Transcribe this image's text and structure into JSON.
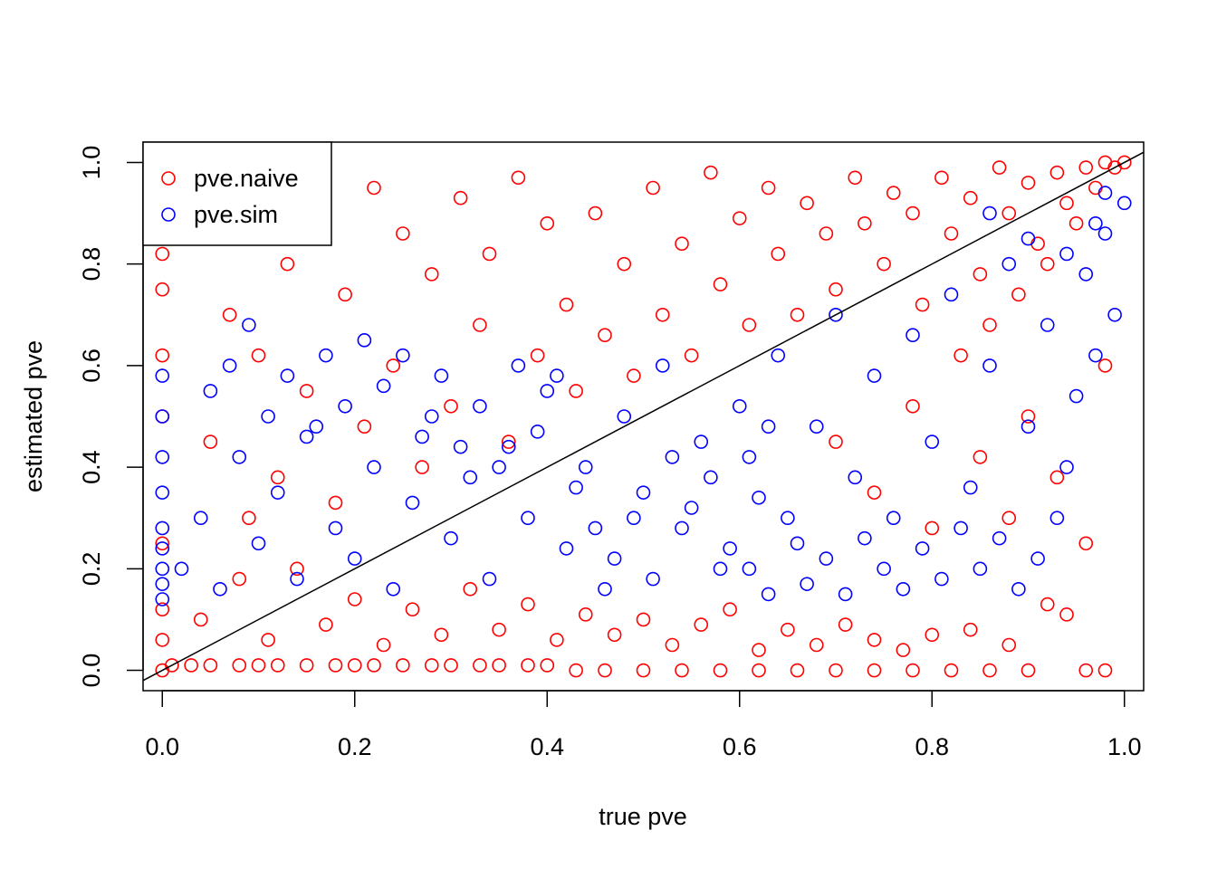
{
  "chart_data": {
    "type": "scatter",
    "title": "",
    "xlabel": "true pve",
    "ylabel": "estimated pve",
    "xlim": [
      -0.02,
      1.02
    ],
    "ylim": [
      -0.04,
      1.04
    ],
    "x_ticks": [
      "0.0",
      "0.2",
      "0.4",
      "0.6",
      "0.8",
      "1.0"
    ],
    "y_ticks": [
      "0.0",
      "0.2",
      "0.4",
      "0.6",
      "0.8",
      "1.0"
    ],
    "grid": false,
    "legend_position": "top-left",
    "reference_line": {
      "from": [
        -0.02,
        -0.02
      ],
      "to": [
        1.02,
        1.02
      ]
    },
    "series": [
      {
        "name": "pve.naive",
        "color": "#ff0000",
        "marker": "open-circle",
        "values": [
          [
            0.0,
            0.0
          ],
          [
            0.0,
            0.25
          ],
          [
            0.0,
            0.5
          ],
          [
            0.0,
            0.62
          ],
          [
            0.0,
            0.75
          ],
          [
            0.0,
            0.82
          ],
          [
            0.0,
            0.88
          ],
          [
            0.0,
            0.12
          ],
          [
            0.0,
            0.06
          ],
          [
            0.01,
            0.01
          ],
          [
            0.03,
            0.01
          ],
          [
            0.05,
            0.01
          ],
          [
            0.08,
            0.01
          ],
          [
            0.1,
            0.01
          ],
          [
            0.12,
            0.01
          ],
          [
            0.15,
            0.01
          ],
          [
            0.18,
            0.01
          ],
          [
            0.2,
            0.01
          ],
          [
            0.22,
            0.01
          ],
          [
            0.25,
            0.01
          ],
          [
            0.28,
            0.01
          ],
          [
            0.3,
            0.01
          ],
          [
            0.33,
            0.01
          ],
          [
            0.35,
            0.01
          ],
          [
            0.38,
            0.01
          ],
          [
            0.4,
            0.01
          ],
          [
            0.43,
            0.0
          ],
          [
            0.46,
            0.0
          ],
          [
            0.5,
            0.0
          ],
          [
            0.54,
            0.0
          ],
          [
            0.58,
            0.0
          ],
          [
            0.62,
            0.0
          ],
          [
            0.66,
            0.0
          ],
          [
            0.7,
            0.0
          ],
          [
            0.74,
            0.0
          ],
          [
            0.78,
            0.0
          ],
          [
            0.82,
            0.0
          ],
          [
            0.86,
            0.0
          ],
          [
            0.9,
            0.0
          ],
          [
            0.96,
            0.0
          ],
          [
            0.98,
            0.0
          ],
          [
            0.05,
            0.45
          ],
          [
            0.07,
            0.7
          ],
          [
            0.09,
            0.3
          ],
          [
            0.1,
            0.62
          ],
          [
            0.12,
            0.38
          ],
          [
            0.13,
            0.8
          ],
          [
            0.15,
            0.55
          ],
          [
            0.16,
            0.9
          ],
          [
            0.18,
            0.33
          ],
          [
            0.19,
            0.74
          ],
          [
            0.21,
            0.48
          ],
          [
            0.22,
            0.95
          ],
          [
            0.24,
            0.6
          ],
          [
            0.25,
            0.86
          ],
          [
            0.27,
            0.4
          ],
          [
            0.28,
            0.78
          ],
          [
            0.3,
            0.52
          ],
          [
            0.31,
            0.93
          ],
          [
            0.33,
            0.68
          ],
          [
            0.34,
            0.82
          ],
          [
            0.36,
            0.45
          ],
          [
            0.37,
            0.97
          ],
          [
            0.39,
            0.62
          ],
          [
            0.4,
            0.88
          ],
          [
            0.42,
            0.72
          ],
          [
            0.43,
            0.55
          ],
          [
            0.45,
            0.9
          ],
          [
            0.46,
            0.66
          ],
          [
            0.48,
            0.8
          ],
          [
            0.49,
            0.58
          ],
          [
            0.51,
            0.95
          ],
          [
            0.52,
            0.7
          ],
          [
            0.54,
            0.84
          ],
          [
            0.55,
            0.62
          ],
          [
            0.57,
            0.98
          ],
          [
            0.58,
            0.76
          ],
          [
            0.6,
            0.89
          ],
          [
            0.61,
            0.68
          ],
          [
            0.63,
            0.95
          ],
          [
            0.64,
            0.82
          ],
          [
            0.66,
            0.7
          ],
          [
            0.67,
            0.92
          ],
          [
            0.69,
            0.86
          ],
          [
            0.7,
            0.75
          ],
          [
            0.72,
            0.97
          ],
          [
            0.73,
            0.88
          ],
          [
            0.75,
            0.8
          ],
          [
            0.76,
            0.94
          ],
          [
            0.78,
            0.9
          ],
          [
            0.79,
            0.72
          ],
          [
            0.81,
            0.97
          ],
          [
            0.82,
            0.86
          ],
          [
            0.84,
            0.93
          ],
          [
            0.85,
            0.78
          ],
          [
            0.87,
            0.99
          ],
          [
            0.88,
            0.9
          ],
          [
            0.9,
            0.96
          ],
          [
            0.91,
            0.84
          ],
          [
            0.93,
            0.98
          ],
          [
            0.94,
            0.92
          ],
          [
            0.96,
            0.99
          ],
          [
            0.97,
            0.95
          ],
          [
            0.98,
            1.0
          ],
          [
            0.99,
            0.99
          ],
          [
            1.0,
            1.0
          ],
          [
            0.95,
            0.88
          ],
          [
            0.92,
            0.8
          ],
          [
            0.89,
            0.74
          ],
          [
            0.86,
            0.68
          ],
          [
            0.83,
            0.62
          ],
          [
            0.04,
            0.1
          ],
          [
            0.08,
            0.18
          ],
          [
            0.11,
            0.06
          ],
          [
            0.14,
            0.2
          ],
          [
            0.17,
            0.09
          ],
          [
            0.2,
            0.14
          ],
          [
            0.23,
            0.05
          ],
          [
            0.26,
            0.12
          ],
          [
            0.29,
            0.07
          ],
          [
            0.32,
            0.16
          ],
          [
            0.35,
            0.08
          ],
          [
            0.38,
            0.13
          ],
          [
            0.41,
            0.06
          ],
          [
            0.44,
            0.11
          ],
          [
            0.47,
            0.07
          ],
          [
            0.5,
            0.1
          ],
          [
            0.53,
            0.05
          ],
          [
            0.56,
            0.09
          ],
          [
            0.59,
            0.12
          ],
          [
            0.62,
            0.04
          ],
          [
            0.65,
            0.08
          ],
          [
            0.68,
            0.05
          ],
          [
            0.71,
            0.09
          ],
          [
            0.74,
            0.06
          ],
          [
            0.77,
            0.04
          ],
          [
            0.8,
            0.07
          ],
          [
            0.84,
            0.08
          ],
          [
            0.88,
            0.05
          ],
          [
            0.92,
            0.13
          ],
          [
            0.94,
            0.11
          ],
          [
            0.7,
            0.45
          ],
          [
            0.74,
            0.35
          ],
          [
            0.78,
            0.52
          ],
          [
            0.8,
            0.28
          ],
          [
            0.85,
            0.42
          ],
          [
            0.88,
            0.3
          ],
          [
            0.9,
            0.5
          ],
          [
            0.93,
            0.38
          ],
          [
            0.96,
            0.25
          ],
          [
            0.98,
            0.6
          ]
        ]
      },
      {
        "name": "pve.sim",
        "color": "#0000ff",
        "marker": "open-circle",
        "values": [
          [
            0.0,
            0.14
          ],
          [
            0.0,
            0.2
          ],
          [
            0.0,
            0.28
          ],
          [
            0.0,
            0.35
          ],
          [
            0.0,
            0.42
          ],
          [
            0.0,
            0.5
          ],
          [
            0.0,
            0.58
          ],
          [
            0.0,
            0.17
          ],
          [
            0.0,
            0.24
          ],
          [
            0.02,
            0.2
          ],
          [
            0.04,
            0.3
          ],
          [
            0.06,
            0.16
          ],
          [
            0.08,
            0.42
          ],
          [
            0.1,
            0.25
          ],
          [
            0.12,
            0.35
          ],
          [
            0.14,
            0.18
          ],
          [
            0.16,
            0.48
          ],
          [
            0.18,
            0.28
          ],
          [
            0.2,
            0.22
          ],
          [
            0.22,
            0.4
          ],
          [
            0.24,
            0.16
          ],
          [
            0.26,
            0.33
          ],
          [
            0.28,
            0.5
          ],
          [
            0.3,
            0.26
          ],
          [
            0.32,
            0.38
          ],
          [
            0.34,
            0.18
          ],
          [
            0.36,
            0.44
          ],
          [
            0.38,
            0.3
          ],
          [
            0.4,
            0.55
          ],
          [
            0.42,
            0.24
          ],
          [
            0.44,
            0.4
          ],
          [
            0.46,
            0.16
          ],
          [
            0.48,
            0.5
          ],
          [
            0.5,
            0.35
          ],
          [
            0.52,
            0.6
          ],
          [
            0.54,
            0.28
          ],
          [
            0.56,
            0.45
          ],
          [
            0.58,
            0.2
          ],
          [
            0.6,
            0.52
          ],
          [
            0.62,
            0.34
          ],
          [
            0.64,
            0.62
          ],
          [
            0.66,
            0.25
          ],
          [
            0.68,
            0.48
          ],
          [
            0.7,
            0.7
          ],
          [
            0.72,
            0.38
          ],
          [
            0.74,
            0.58
          ],
          [
            0.76,
            0.3
          ],
          [
            0.78,
            0.66
          ],
          [
            0.8,
            0.45
          ],
          [
            0.82,
            0.74
          ],
          [
            0.84,
            0.36
          ],
          [
            0.86,
            0.6
          ],
          [
            0.88,
            0.8
          ],
          [
            0.9,
            0.48
          ],
          [
            0.92,
            0.68
          ],
          [
            0.94,
            0.4
          ],
          [
            0.96,
            0.78
          ],
          [
            0.98,
            0.86
          ],
          [
            1.0,
            0.92
          ],
          [
            0.99,
            0.7
          ],
          [
            0.97,
            0.62
          ],
          [
            0.95,
            0.54
          ],
          [
            0.93,
            0.3
          ],
          [
            0.91,
            0.22
          ],
          [
            0.89,
            0.16
          ],
          [
            0.87,
            0.26
          ],
          [
            0.85,
            0.2
          ],
          [
            0.83,
            0.28
          ],
          [
            0.81,
            0.18
          ],
          [
            0.79,
            0.24
          ],
          [
            0.77,
            0.16
          ],
          [
            0.75,
            0.2
          ],
          [
            0.73,
            0.26
          ],
          [
            0.71,
            0.15
          ],
          [
            0.69,
            0.22
          ],
          [
            0.67,
            0.17
          ],
          [
            0.65,
            0.3
          ],
          [
            0.63,
            0.15
          ],
          [
            0.61,
            0.2
          ],
          [
            0.05,
            0.55
          ],
          [
            0.07,
            0.6
          ],
          [
            0.09,
            0.68
          ],
          [
            0.11,
            0.5
          ],
          [
            0.13,
            0.58
          ],
          [
            0.15,
            0.46
          ],
          [
            0.17,
            0.62
          ],
          [
            0.19,
            0.52
          ],
          [
            0.21,
            0.65
          ],
          [
            0.23,
            0.56
          ],
          [
            0.25,
            0.62
          ],
          [
            0.27,
            0.46
          ],
          [
            0.29,
            0.58
          ],
          [
            0.31,
            0.44
          ],
          [
            0.33,
            0.52
          ],
          [
            0.35,
            0.4
          ],
          [
            0.37,
            0.6
          ],
          [
            0.39,
            0.47
          ],
          [
            0.41,
            0.58
          ],
          [
            0.43,
            0.36
          ],
          [
            0.45,
            0.28
          ],
          [
            0.47,
            0.22
          ],
          [
            0.49,
            0.3
          ],
          [
            0.51,
            0.18
          ],
          [
            0.53,
            0.42
          ],
          [
            0.55,
            0.32
          ],
          [
            0.57,
            0.38
          ],
          [
            0.59,
            0.24
          ],
          [
            0.61,
            0.42
          ],
          [
            0.63,
            0.48
          ],
          [
            0.86,
            0.9
          ],
          [
            0.9,
            0.85
          ],
          [
            0.94,
            0.82
          ],
          [
            0.97,
            0.88
          ],
          [
            0.98,
            0.94
          ]
        ]
      }
    ]
  }
}
